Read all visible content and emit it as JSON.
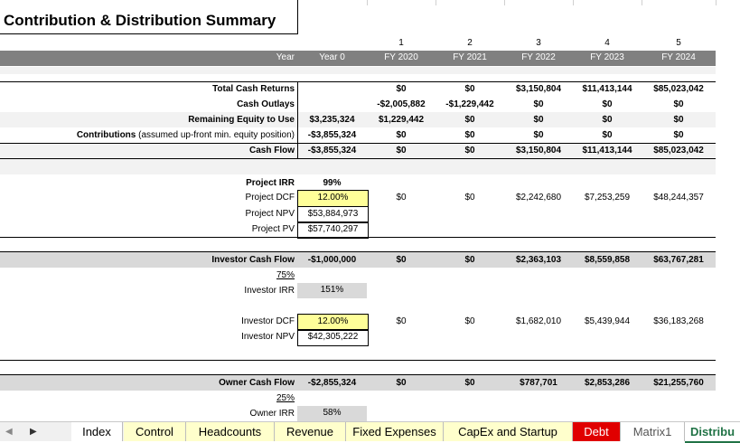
{
  "title": "Contribution & Distribution Summary",
  "header": {
    "period_numbers": [
      "1",
      "2",
      "3",
      "4",
      "5"
    ],
    "year_label": "Year",
    "year0": "Year 0",
    "fiscal_years": [
      "FY 2020",
      "FY 2021",
      "FY 2022",
      "FY 2023",
      "FY 2024"
    ]
  },
  "summary": [
    {
      "label": "Total Cash Returns",
      "bold": true,
      "year0": "",
      "values": [
        "$0",
        "$0",
        "$3,150,804",
        "$11,413,144",
        "$85,023,042"
      ]
    },
    {
      "label": "Cash Outlays",
      "bold": true,
      "year0": "",
      "values": [
        "-$2,005,882",
        "-$1,229,442",
        "$0",
        "$0",
        "$0"
      ]
    },
    {
      "label": "Remaining Equity to Use",
      "bold": true,
      "year0": "$3,235,324",
      "values": [
        "$1,229,442",
        "$0",
        "$0",
        "$0",
        "$0"
      ]
    },
    {
      "label_bold": "Contributions",
      "label_rest": " (assumed up-front min. equity position)",
      "year0": "-$3,855,324",
      "values": [
        "$0",
        "$0",
        "$0",
        "$0",
        "$0"
      ]
    },
    {
      "label": "Cash Flow",
      "bold": true,
      "year0": "-$3,855,324",
      "values": [
        "$0",
        "$0",
        "$3,150,804",
        "$11,413,144",
        "$85,023,042"
      ]
    }
  ],
  "project": {
    "irr_label": "Project IRR",
    "irr": "99%",
    "dcf_label": "Project DCF",
    "dcf_rate": "12.00%",
    "dcf_values": [
      "$0",
      "$0",
      "$2,242,680",
      "$7,253,259",
      "$48,244,357"
    ],
    "npv_label": "Project NPV",
    "npv": "$53,884,973",
    "pv_label": "Project PV",
    "pv": "$57,740,297"
  },
  "investor": {
    "cf_label": "Investor Cash Flow",
    "cf_year0": "-$1,000,000",
    "cf_values": [
      "$0",
      "$0",
      "$2,363,103",
      "$8,559,858",
      "$63,767,281"
    ],
    "share": "75%",
    "irr_label": "Investor IRR",
    "irr": "151%",
    "dcf_label": "Investor DCF",
    "dcf_rate": "12.00%",
    "dcf_values": [
      "$0",
      "$0",
      "$1,682,010",
      "$5,439,944",
      "$36,183,268"
    ],
    "npv_label": "Investor NPV",
    "npv": "$42,305,222"
  },
  "owner": {
    "cf_label": "Owner Cash Flow",
    "cf_year0": "-$2,855,324",
    "cf_values": [
      "$0",
      "$0",
      "$787,701",
      "$2,853,286",
      "$21,255,760"
    ],
    "share": "25%",
    "irr_label": "Owner IRR",
    "irr": "58%"
  },
  "tabs": [
    "Index",
    "Control",
    "Headcounts",
    "Revenue",
    "Fixed Expenses",
    "CapEx and Startup",
    "Debt",
    "Matrix1",
    "Distribu"
  ],
  "colors": {
    "header_bar": "#808080",
    "input_yellow": "#ffff99",
    "tab_yellow": "#ffffcc",
    "tab_red": "#e00000",
    "active_tab_text": "#217346"
  }
}
